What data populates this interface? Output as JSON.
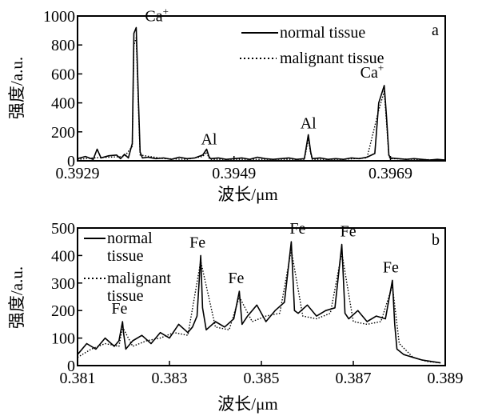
{
  "chart_data": [
    {
      "type": "line",
      "panel_letter": "a",
      "xlabel": "波长/μm",
      "ylabel": "强度/a.u.",
      "xlim": [
        0.3929,
        0.3976
      ],
      "ylim": [
        0,
        1000
      ],
      "x_ticks": [
        0.3929,
        0.3949,
        0.3969
      ],
      "x_tick_labels": [
        "0.3929",
        "0.3949",
        "0.3969"
      ],
      "y_ticks": [
        0,
        200,
        400,
        600,
        800,
        1000
      ],
      "y_tick_labels": [
        "0",
        "200",
        "400",
        "600",
        "800",
        "1000"
      ],
      "legend_position": "top-right",
      "grid": false,
      "series": [
        {
          "name": "normal tissue",
          "style": "solid",
          "x": [
            0.3929,
            0.393,
            0.3931,
            0.39315,
            0.3932,
            0.3933,
            0.3934,
            0.39345,
            0.3935,
            0.39355,
            0.3936,
            0.39362,
            0.39365,
            0.39368,
            0.3937,
            0.39373,
            0.3938,
            0.3939,
            0.394,
            0.3941,
            0.3942,
            0.3943,
            0.3944,
            0.3945,
            0.39455,
            0.39458,
            0.3946,
            0.3947,
            0.3948,
            0.3949,
            0.395,
            0.3951,
            0.3952,
            0.3953,
            0.3954,
            0.3955,
            0.3956,
            0.3957,
            0.3958,
            0.39585,
            0.39588,
            0.3959,
            0.396,
            0.3961,
            0.3962,
            0.3963,
            0.3964,
            0.3965,
            0.3966,
            0.3967,
            0.39675,
            0.39682,
            0.39685,
            0.39688,
            0.3969,
            0.397,
            0.3971,
            0.3972,
            0.3973,
            0.3974,
            0.3975,
            0.3976
          ],
          "y": [
            15,
            30,
            10,
            80,
            20,
            35,
            40,
            15,
            45,
            20,
            120,
            880,
            920,
            400,
            60,
            20,
            25,
            15,
            20,
            10,
            25,
            15,
            20,
            40,
            80,
            30,
            15,
            20,
            10,
            15,
            20,
            10,
            25,
            15,
            10,
            15,
            20,
            10,
            15,
            180,
            60,
            15,
            20,
            10,
            15,
            10,
            20,
            15,
            25,
            50,
            400,
            520,
            300,
            40,
            20,
            15,
            10,
            15,
            10,
            5,
            10,
            5
          ]
        },
        {
          "name": "malignant tissue",
          "style": "dotted",
          "x": [
            0.3929,
            0.3931,
            0.3933,
            0.3935,
            0.3936,
            0.39362,
            0.39365,
            0.39368,
            0.3937,
            0.394,
            0.3943,
            0.3945,
            0.39455,
            0.39458,
            0.3946,
            0.395,
            0.3954,
            0.3958,
            0.39585,
            0.39588,
            0.3959,
            0.3963,
            0.3966,
            0.39675,
            0.39682,
            0.39685,
            0.39688,
            0.3969,
            0.3972,
            0.3976
          ],
          "y": [
            10,
            20,
            25,
            30,
            100,
            800,
            850,
            350,
            40,
            15,
            10,
            30,
            60,
            20,
            10,
            10,
            10,
            10,
            150,
            50,
            10,
            10,
            20,
            350,
            480,
            260,
            30,
            15,
            10,
            5
          ]
        }
      ],
      "annotations": [
        {
          "text": "Ca",
          "superscript": "+",
          "x": 0.39366,
          "y": 920
        },
        {
          "text": "Al",
          "x": 0.39456,
          "y": 80
        },
        {
          "text": "Al",
          "x": 0.39585,
          "y": 180
        },
        {
          "text": "Ca",
          "superscript": "+",
          "x": 0.39682,
          "y": 520
        }
      ]
    },
    {
      "type": "line",
      "panel_letter": "b",
      "xlabel": "波长/μm",
      "ylabel": "强度/a.u.",
      "xlim": [
        0.381,
        0.389
      ],
      "ylim": [
        0,
        500
      ],
      "x_ticks": [
        0.381,
        0.383,
        0.385,
        0.387,
        0.389
      ],
      "x_tick_labels": [
        "0.381",
        "0.383",
        "0.385",
        "0.387",
        "0.389"
      ],
      "y_ticks": [
        0,
        100,
        200,
        300,
        400,
        500
      ],
      "y_tick_labels": [
        "0",
        "100",
        "200",
        "300",
        "400",
        "500"
      ],
      "legend_position": "top-left",
      "grid": false,
      "series": [
        {
          "name": "normal tissue",
          "style": "solid",
          "x": [
            0.381,
            0.3812,
            0.3814,
            0.3816,
            0.3818,
            0.3819,
            0.38198,
            0.382,
            0.38205,
            0.3822,
            0.3824,
            0.3826,
            0.3828,
            0.383,
            0.3832,
            0.3834,
            0.3835,
            0.3836,
            0.38368,
            0.38372,
            0.3838,
            0.384,
            0.3842,
            0.3844,
            0.38452,
            0.38458,
            0.3847,
            0.3849,
            0.3851,
            0.3853,
            0.3855,
            0.38565,
            0.38572,
            0.3858,
            0.386,
            0.3862,
            0.3864,
            0.3866,
            0.38675,
            0.38682,
            0.3869,
            0.3871,
            0.3873,
            0.3875,
            0.3877,
            0.38785,
            0.3879,
            0.38795,
            0.3881,
            0.3883,
            0.3885,
            0.3887,
            0.3889
          ],
          "y": [
            40,
            80,
            60,
            100,
            70,
            90,
            160,
            120,
            60,
            90,
            110,
            80,
            120,
            100,
            150,
            120,
            140,
            180,
            400,
            210,
            130,
            160,
            140,
            170,
            270,
            150,
            180,
            220,
            160,
            200,
            230,
            450,
            200,
            190,
            220,
            180,
            200,
            210,
            440,
            190,
            170,
            200,
            160,
            180,
            170,
            310,
            150,
            60,
            40,
            30,
            20,
            15,
            10
          ]
        },
        {
          "name": "malignant tissue",
          "style": "dotted",
          "x": [
            0.381,
            0.3813,
            0.3816,
            0.3819,
            0.38198,
            0.3822,
            0.3825,
            0.3828,
            0.3831,
            0.3834,
            0.38368,
            0.384,
            0.3843,
            0.38452,
            0.3848,
            0.3851,
            0.3854,
            0.38565,
            0.3859,
            0.3862,
            0.3865,
            0.38675,
            0.387,
            0.3873,
            0.3876,
            0.38785,
            0.388,
            0.3883,
            0.3886,
            0.3889
          ],
          "y": [
            30,
            60,
            80,
            70,
            140,
            70,
            90,
            100,
            120,
            110,
            380,
            140,
            130,
            250,
            160,
            180,
            190,
            420,
            180,
            170,
            190,
            410,
            160,
            150,
            160,
            290,
            80,
            30,
            15,
            10
          ]
        }
      ],
      "annotations": [
        {
          "text": "Fe",
          "x": 0.38198,
          "y": 160
        },
        {
          "text": "Fe",
          "x": 0.38368,
          "y": 400
        },
        {
          "text": "Fe",
          "x": 0.38452,
          "y": 270
        },
        {
          "text": "Fe",
          "x": 0.38565,
          "y": 450
        },
        {
          "text": "Fe",
          "x": 0.38675,
          "y": 440
        },
        {
          "text": "Fe",
          "x": 0.38785,
          "y": 310
        }
      ]
    }
  ]
}
